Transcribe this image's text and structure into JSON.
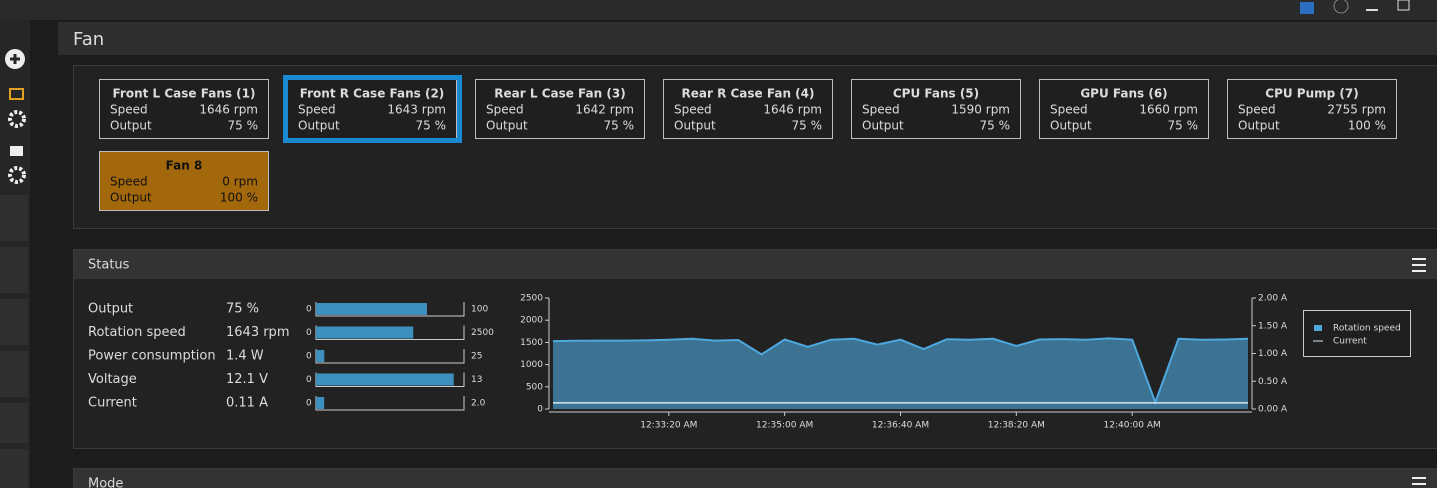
{
  "header": {
    "title": "Fan"
  },
  "fan_labels": {
    "speed": "Speed",
    "output": "Output"
  },
  "fans": [
    {
      "name": "Front L Case Fans (1)",
      "speed": "1646 rpm",
      "output": "75 %"
    },
    {
      "name": "Front R Case Fans (2)",
      "speed": "1643 rpm",
      "output": "75 %",
      "selected": true
    },
    {
      "name": "Rear L Case Fan (3)",
      "speed": "1642 rpm",
      "output": "75 %"
    },
    {
      "name": "Rear R Case Fan (4)",
      "speed": "1646 rpm",
      "output": "75 %"
    },
    {
      "name": "CPU Fans (5)",
      "speed": "1590 rpm",
      "output": "75 %"
    },
    {
      "name": "GPU Fans (6)",
      "speed": "1660 rpm",
      "output": "75 %"
    },
    {
      "name": "CPU Pump (7)",
      "speed": "2755 rpm",
      "output": "100 %"
    },
    {
      "name": "Fan 8",
      "speed": "0 rpm",
      "output": "100 %",
      "color": "#a4680c"
    }
  ],
  "status": {
    "title": "Status",
    "rows": [
      {
        "label": "Output",
        "value": 75,
        "value_label": "75 %",
        "min": 0,
        "max": 100
      },
      {
        "label": "Rotation speed",
        "value": 1643,
        "value_label": "1643 rpm",
        "min": 0,
        "max": 2500
      },
      {
        "label": "Power consumption",
        "value": 1.4,
        "value_label": "1.4 W",
        "min": 0,
        "max": 25
      },
      {
        "label": "Voltage",
        "value": 12.1,
        "value_label": "12.1 V",
        "min": 0,
        "max": 13
      },
      {
        "label": "Current",
        "value": 0.11,
        "value_label": "0.11 A",
        "min": 0,
        "max": {
          "value": 2,
          "label": "2.0"
        }
      }
    ]
  },
  "chart_data": {
    "type": "area",
    "x": [
      "12:31:40 AM",
      "12:32:00 AM",
      "12:32:20 AM",
      "12:32:40 AM",
      "12:33:00 AM",
      "12:33:20 AM",
      "12:33:40 AM",
      "12:34:00 AM",
      "12:34:20 AM",
      "12:34:40 AM",
      "12:35:00 AM",
      "12:35:20 AM",
      "12:35:40 AM",
      "12:36:00 AM",
      "12:36:20 AM",
      "12:36:40 AM",
      "12:37:00 AM",
      "12:37:20 AM",
      "12:37:40 AM",
      "12:38:00 AM",
      "12:38:20 AM",
      "12:38:40 AM",
      "12:39:00 AM",
      "12:39:20 AM",
      "12:39:40 AM",
      "12:40:00 AM",
      "12:40:20 AM",
      "12:40:40 AM",
      "12:41:00 AM",
      "12:41:20 AM",
      "12:41:40 AM"
    ],
    "series": [
      {
        "name": "Rotation speed",
        "color": "#4ea8de",
        "values": [
          1530,
          1535,
          1540,
          1540,
          1545,
          1560,
          1580,
          1540,
          1555,
          1230,
          1565,
          1400,
          1560,
          1580,
          1450,
          1560,
          1350,
          1570,
          1560,
          1580,
          1420,
          1565,
          1575,
          1560,
          1590,
          1560,
          150,
          1580,
          1560,
          1565,
          1580
        ]
      },
      {
        "name": "Current",
        "color": "#d4e8f4",
        "axis": "y2",
        "values": [
          0.11,
          0.11,
          0.11,
          0.11,
          0.11,
          0.11,
          0.11,
          0.11,
          0.11,
          0.11,
          0.11,
          0.11,
          0.11,
          0.11,
          0.11,
          0.11,
          0.11,
          0.11,
          0.11,
          0.11,
          0.11,
          0.11,
          0.11,
          0.11,
          0.11,
          0.11,
          0.11,
          0.11,
          0.11,
          0.11,
          0.11
        ]
      }
    ],
    "xticks": [
      "12:33:20 AM",
      "12:35:00 AM",
      "12:36:40 AM",
      "12:38:20 AM",
      "12:40:00 AM"
    ],
    "ylim": [
      0,
      2500
    ],
    "yticks": [
      0,
      500,
      1000,
      1500,
      2000,
      2500
    ],
    "y2lim": [
      0,
      2
    ],
    "y2ticks": [
      {
        "value": 0,
        "label": "0.00 A"
      },
      {
        "value": 0.5,
        "label": "0.50 A"
      },
      {
        "value": 1,
        "label": "1.00 A"
      },
      {
        "value": 1.5,
        "label": "1.50 A"
      },
      {
        "value": 2,
        "label": "2.00 A"
      }
    ],
    "legend": "upper right"
  },
  "mode": {
    "title": "Mode"
  }
}
